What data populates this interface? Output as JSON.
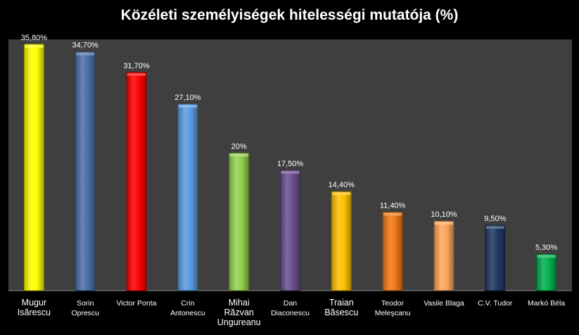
{
  "chart_data": {
    "type": "bar",
    "title": "Közéleti személyiségek hitelességi mutatója (%)",
    "xlabel": "",
    "ylabel": "",
    "ylim": [
      0,
      36.5
    ],
    "grid": false,
    "legend": "none",
    "categories": [
      "Mugur Isărescu",
      "Sorin Oprescu",
      "Victor Ponta",
      "Crin Antonescu",
      "Mihai Răzvan Ungureanu",
      "Dan Diaconescu",
      "Traian Băsescu",
      "Teodor Meleşcanu",
      "Vasile Blaga",
      "C.V. Tudor",
      "Markó Béla"
    ],
    "category_label_lines": [
      [
        "Mugur",
        "Isărescu"
      ],
      [
        "Sorin",
        "Oprescu"
      ],
      [
        "Victor Ponta"
      ],
      [
        "Crin",
        "Antonescu"
      ],
      [
        "Mihai",
        "Răzvan",
        "Ungureanu"
      ],
      [
        "Dan",
        "Diaconescu"
      ],
      [
        "Traian",
        "Băsescu"
      ],
      [
        "Teodor",
        "Meleşcanu"
      ],
      [
        "Vasile Blaga"
      ],
      [
        "C.V. Tudor"
      ],
      [
        "Markó Béla"
      ]
    ],
    "values": [
      35.8,
      34.7,
      31.7,
      27.1,
      20,
      17.5,
      14.4,
      11.4,
      10.1,
      9.5,
      5.3
    ],
    "data_labels": [
      "35,80%",
      "34,70%",
      "31,70%",
      "27,10%",
      "20%",
      "17,50%",
      "14,40%",
      "11,40%",
      "10,10%",
      "9,50%",
      "5,30%"
    ],
    "colors": [
      "#FFFF00",
      "#4A6FA5",
      "#FF0000",
      "#5B9BE0",
      "#92D050",
      "#6B4E8E",
      "#FFC000",
      "#F07818",
      "#FDA55A",
      "#1F3864",
      "#00B050"
    ],
    "plot_background": "#3F3F3F",
    "page_background": "#000000"
  }
}
